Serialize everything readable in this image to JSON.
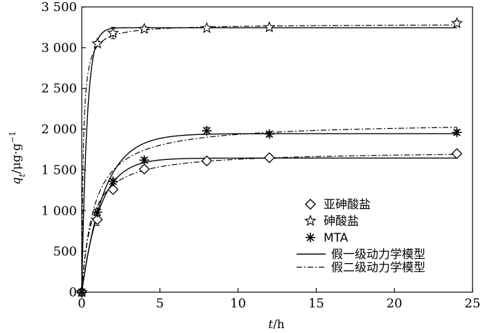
{
  "chart_data": {
    "type": "scatter",
    "xlabel": {
      "var": "t",
      "unit": "/h"
    },
    "ylabel": {
      "var": "q",
      "sub": "t",
      "unit": "/μg·g",
      "sup": "−1"
    },
    "xlim": [
      0,
      25
    ],
    "ylim": [
      0,
      3500
    ],
    "x_ticks": [
      0,
      5,
      10,
      15,
      20,
      25
    ],
    "x_tick_labels": [
      "0",
      "5",
      "10",
      "15",
      "20",
      "25"
    ],
    "y_ticks": [
      0,
      500,
      1000,
      1500,
      2000,
      2500,
      3000,
      3500
    ],
    "y_tick_labels": [
      "0",
      "500",
      "1 000",
      "1 500",
      "2 000",
      "2 500",
      "3 000",
      "3 500"
    ],
    "grid": false,
    "legend_position": "bottom-right",
    "series": [
      {
        "name": "亚砷酸盐",
        "marker": "diamond",
        "x": [
          0,
          1,
          2,
          4,
          8,
          12,
          24
        ],
        "y": [
          0,
          890,
          1260,
          1510,
          1610,
          1650,
          1700
        ],
        "err": [
          0,
          70,
          40,
          40,
          30,
          30,
          30
        ]
      },
      {
        "name": "砷酸盐",
        "marker": "star",
        "x": [
          0,
          1,
          2,
          4,
          8,
          12,
          24
        ],
        "y": [
          0,
          3050,
          3180,
          3230,
          3240,
          3250,
          3300
        ],
        "err": [
          0,
          30,
          70,
          30,
          20,
          20,
          30
        ]
      },
      {
        "name": "MTA",
        "marker": "asterisk",
        "x": [
          0,
          1,
          2,
          4,
          8,
          12,
          24
        ],
        "y": [
          0,
          980,
          1360,
          1620,
          1980,
          1940,
          1960
        ],
        "err": [
          0,
          40,
          30,
          30,
          40,
          30,
          30
        ]
      }
    ],
    "model_curves": [
      {
        "name": "假一级动力学模型",
        "style": "solid",
        "params": [
          {
            "qe": 1645,
            "k1": 0.85
          },
          {
            "qe": 3245,
            "k1": 3.0
          },
          {
            "qe": 1945,
            "k1": 0.7
          }
        ]
      },
      {
        "name": "假二级动力学模型",
        "style": "dashdot",
        "params": [
          {
            "qe": 1735,
            "k2": 0.0009
          },
          {
            "qe": 3290,
            "k2": 0.0034
          },
          {
            "qe": 2090,
            "k2": 0.0006
          }
        ]
      }
    ]
  }
}
